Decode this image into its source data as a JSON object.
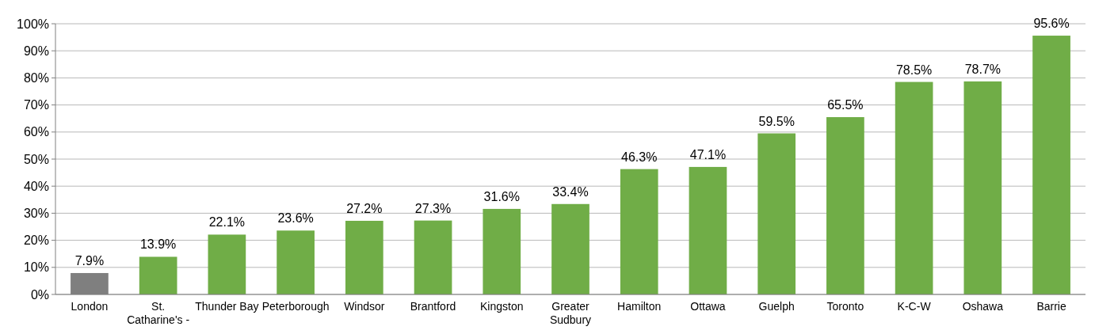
{
  "chart_data": {
    "type": "bar",
    "categories": [
      "London",
      "St.\nCatharine's -",
      "Thunder Bay",
      "Peterborough",
      "Windsor",
      "Brantford",
      "Kingston",
      "Greater\nSudbury",
      "Hamilton",
      "Ottawa",
      "Guelph",
      "Toronto",
      "K-C-W",
      "Oshawa",
      "Barrie"
    ],
    "values": [
      7.9,
      13.9,
      22.1,
      23.6,
      27.2,
      27.3,
      31.6,
      33.4,
      46.3,
      47.1,
      59.5,
      65.5,
      78.5,
      78.7,
      95.6
    ],
    "value_labels": [
      "7.9%",
      "13.9%",
      "22.1%",
      "23.6%",
      "27.2%",
      "27.3%",
      "31.6%",
      "33.4%",
      "46.3%",
      "47.1%",
      "59.5%",
      "65.5%",
      "78.5%",
      "78.7%",
      "95.6%"
    ],
    "colors": [
      "#7f7f7f",
      "#70ad47",
      "#70ad47",
      "#70ad47",
      "#70ad47",
      "#70ad47",
      "#70ad47",
      "#70ad47",
      "#70ad47",
      "#70ad47",
      "#70ad47",
      "#70ad47",
      "#70ad47",
      "#70ad47",
      "#70ad47"
    ],
    "ylim": [
      0,
      100
    ],
    "yticks": [
      {
        "value": 0,
        "label": "0%"
      },
      {
        "value": 10,
        "label": "10%"
      },
      {
        "value": 20,
        "label": "20%"
      },
      {
        "value": 30,
        "label": "30%"
      },
      {
        "value": 40,
        "label": "40%"
      },
      {
        "value": 50,
        "label": "50%"
      },
      {
        "value": 60,
        "label": "60%"
      },
      {
        "value": 70,
        "label": "70%"
      },
      {
        "value": 80,
        "label": "80%"
      },
      {
        "value": 90,
        "label": "90%"
      },
      {
        "value": 100,
        "label": "100%"
      }
    ],
    "grid": "y"
  }
}
